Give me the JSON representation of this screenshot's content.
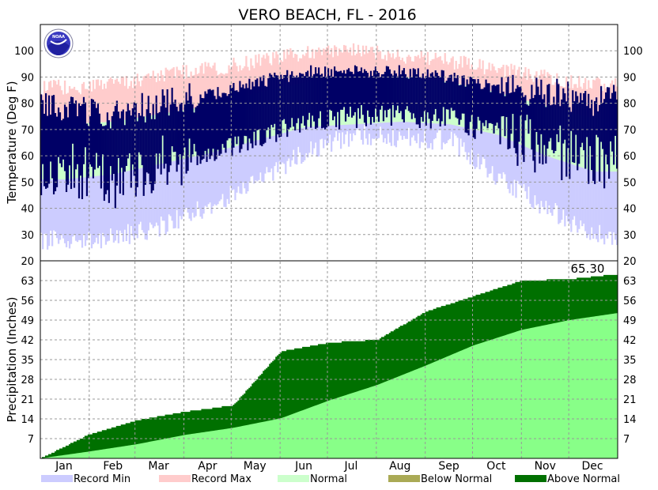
{
  "title": "VERO BEACH, FL - 2016",
  "logo_text": "NOAA",
  "chart_data": [
    {
      "type": "area",
      "name": "temperature",
      "ylabel": "Temperature (Deg F)",
      "ylim": [
        20,
        110
      ],
      "yticks": [
        20,
        30,
        40,
        50,
        60,
        70,
        80,
        90,
        100
      ],
      "months": [
        "Jan",
        "Feb",
        "Mar",
        "Apr",
        "May",
        "Jun",
        "Jul",
        "Aug",
        "Sep",
        "Oct",
        "Nov",
        "Dec"
      ],
      "grid": true,
      "normal_high_monthly": [
        72,
        73,
        76,
        79,
        84,
        88,
        90,
        90,
        88,
        84,
        79,
        74
      ],
      "normal_low_monthly": [
        51,
        53,
        57,
        61,
        66,
        71,
        72,
        73,
        72,
        68,
        60,
        54
      ],
      "record_high_monthly": [
        86,
        87,
        91,
        93,
        96,
        99,
        100,
        98,
        96,
        93,
        90,
        87
      ],
      "record_low_monthly": [
        28,
        29,
        33,
        41,
        50,
        62,
        68,
        67,
        66,
        52,
        40,
        30
      ],
      "actual_high_monthly": [
        78,
        76,
        80,
        83,
        88,
        92,
        93,
        92,
        90,
        86,
        84,
        81
      ],
      "actual_low_monthly": [
        55,
        50,
        57,
        60,
        66,
        73,
        75,
        75,
        74,
        68,
        63,
        58
      ]
    },
    {
      "type": "area",
      "name": "precipitation",
      "ylabel": "Precipitation (Inches)",
      "ylim": [
        0,
        70
      ],
      "yticks": [
        7,
        14,
        21,
        28,
        35,
        42,
        49,
        56,
        63
      ],
      "grid": true,
      "annotation": "65.30",
      "total": 65.3,
      "normal_cumulative_monthly_end": [
        2.4,
        5.0,
        8.3,
        10.8,
        14.2,
        20.5,
        26.0,
        32.8,
        40.0,
        45.5,
        49.0,
        51.5
      ],
      "actual_cumulative_monthly_end": [
        8.5,
        13.5,
        16.5,
        18.8,
        38.0,
        41.0,
        42.0,
        52.0,
        57.5,
        63.0,
        63.5,
        65.3
      ]
    }
  ],
  "legend": [
    {
      "label": "Record Min",
      "color": "#ccccff"
    },
    {
      "label": "Record Max",
      "color": "#ffcccc"
    },
    {
      "label": "Normal",
      "color": "#ccffcc"
    },
    {
      "label": "Below Normal",
      "color": "#aaaa55"
    },
    {
      "label": "Above Normal",
      "color": "#007000"
    }
  ],
  "colors": {
    "record_min": "#ccccff",
    "record_max": "#ffcccc",
    "normal": "#ccffcc",
    "actual": "#000066",
    "precip_normal": "#88ff88",
    "precip_above": "#007000",
    "grid": "#999999"
  }
}
